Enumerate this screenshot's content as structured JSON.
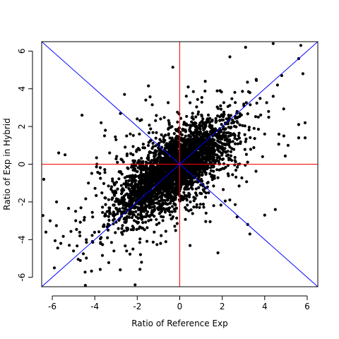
{
  "chart_data": {
    "type": "scatter",
    "title": "",
    "xlabel": "Ratio of Reference Exp",
    "ylabel": "Ratio of Exp in Hybrid",
    "xlim": [
      -6.5,
      6.5
    ],
    "ylim": [
      -6.5,
      6.5
    ],
    "x_ticks": [
      -6,
      -4,
      -2,
      0,
      2,
      4,
      6
    ],
    "y_ticks": [
      -6,
      -4,
      -2,
      0,
      2,
      4,
      6
    ],
    "x_tick_labels": [
      "-6",
      "-4",
      "-2",
      "0",
      "2",
      "4",
      "6"
    ],
    "y_tick_labels": [
      "-6",
      "-4",
      "-2",
      "0",
      "2",
      "4",
      "6"
    ],
    "grid": false,
    "legend": "none",
    "point_color": "#000000",
    "reference_lines": [
      {
        "kind": "vertical",
        "x": 0,
        "color": "#ff0000"
      },
      {
        "kind": "horizontal",
        "y": 0,
        "color": "#ff0000"
      },
      {
        "kind": "diagonal",
        "slope": 1,
        "intercept": 0,
        "color": "#0000ff"
      },
      {
        "kind": "diagonal",
        "slope": -1,
        "intercept": 0,
        "color": "#0000ff"
      }
    ],
    "series": [
      {
        "points": [
          [
            5.7,
            6.3
          ],
          [
            4.4,
            6.4
          ],
          [
            3.1,
            6.2
          ],
          [
            5.6,
            5.6
          ],
          [
            5.8,
            4.8
          ],
          [
            4.8,
            4.7
          ],
          [
            3.6,
            4.5
          ],
          [
            4.6,
            4.2
          ],
          [
            1.2,
            4.4
          ],
          [
            0.4,
            4.1
          ],
          [
            1.9,
            3.9
          ],
          [
            3.3,
            3.8
          ],
          [
            -2.6,
            3.7
          ],
          [
            -1.6,
            3.4
          ],
          [
            4.4,
            3.6
          ],
          [
            2.7,
            2.8
          ],
          [
            5.6,
            2.1
          ],
          [
            5.9,
            2.2
          ],
          [
            5.9,
            1.4
          ],
          [
            5.6,
            1.4
          ],
          [
            4.9,
            1.5
          ],
          [
            5.1,
            1.0
          ],
          [
            -5.7,
            0.6
          ],
          [
            -5.4,
            0.5
          ],
          [
            -3.9,
            0.0
          ],
          [
            -6.4,
            -0.8
          ],
          [
            -4.3,
            -1.0
          ],
          [
            -5.8,
            -2.0
          ],
          [
            -6.1,
            -3.0
          ],
          [
            -6.3,
            -3.6
          ],
          [
            -5.6,
            -4.2
          ],
          [
            -5.9,
            -5.5
          ],
          [
            -5.2,
            -4.3
          ],
          [
            -4.4,
            -4.0
          ],
          [
            -3.1,
            -4.6
          ],
          [
            -2.5,
            -4.6
          ],
          [
            -2.2,
            -4.5
          ],
          [
            -2.1,
            -6.4
          ],
          [
            -2.8,
            -5.6
          ],
          [
            -1.8,
            -5.2
          ],
          [
            -0.9,
            -4.2
          ],
          [
            1.8,
            -4.7
          ],
          [
            3.2,
            -3.2
          ],
          [
            3.3,
            -3.7
          ],
          [
            2.7,
            -2.8
          ],
          [
            4.0,
            -2.7
          ],
          [
            4.5,
            -2.4
          ],
          [
            1.6,
            -2.2
          ],
          [
            0.5,
            -2.0
          ],
          [
            -4.6,
            2.6
          ],
          [
            -3.7,
            2.2
          ],
          [
            -3.5,
            1.8
          ],
          [
            -3.0,
            1.3
          ],
          [
            -2.0,
            2.4
          ],
          [
            -1.9,
            1.6
          ],
          [
            -0.9,
            2.4
          ],
          [
            -2.5,
            1.5
          ],
          [
            -3.3,
            0.6
          ],
          [
            3.7,
            2.5
          ],
          [
            3.1,
            1.2
          ],
          [
            2.6,
            0.2
          ],
          [
            3.9,
            0.4
          ],
          [
            4.0,
            1.6
          ],
          [
            3.5,
            1.9
          ],
          [
            -4.1,
            -2.8
          ],
          [
            -4.9,
            -2.5
          ],
          [
            -3.6,
            -3.3
          ],
          [
            -4.7,
            -3.8
          ],
          [
            -5.0,
            -4.6
          ],
          [
            -3.4,
            -3.9
          ],
          [
            -1.2,
            -3.6
          ],
          [
            -0.4,
            -2.9
          ],
          [
            0.6,
            -1.1
          ],
          [
            1.3,
            -1.0
          ]
        ]
      }
    ]
  }
}
